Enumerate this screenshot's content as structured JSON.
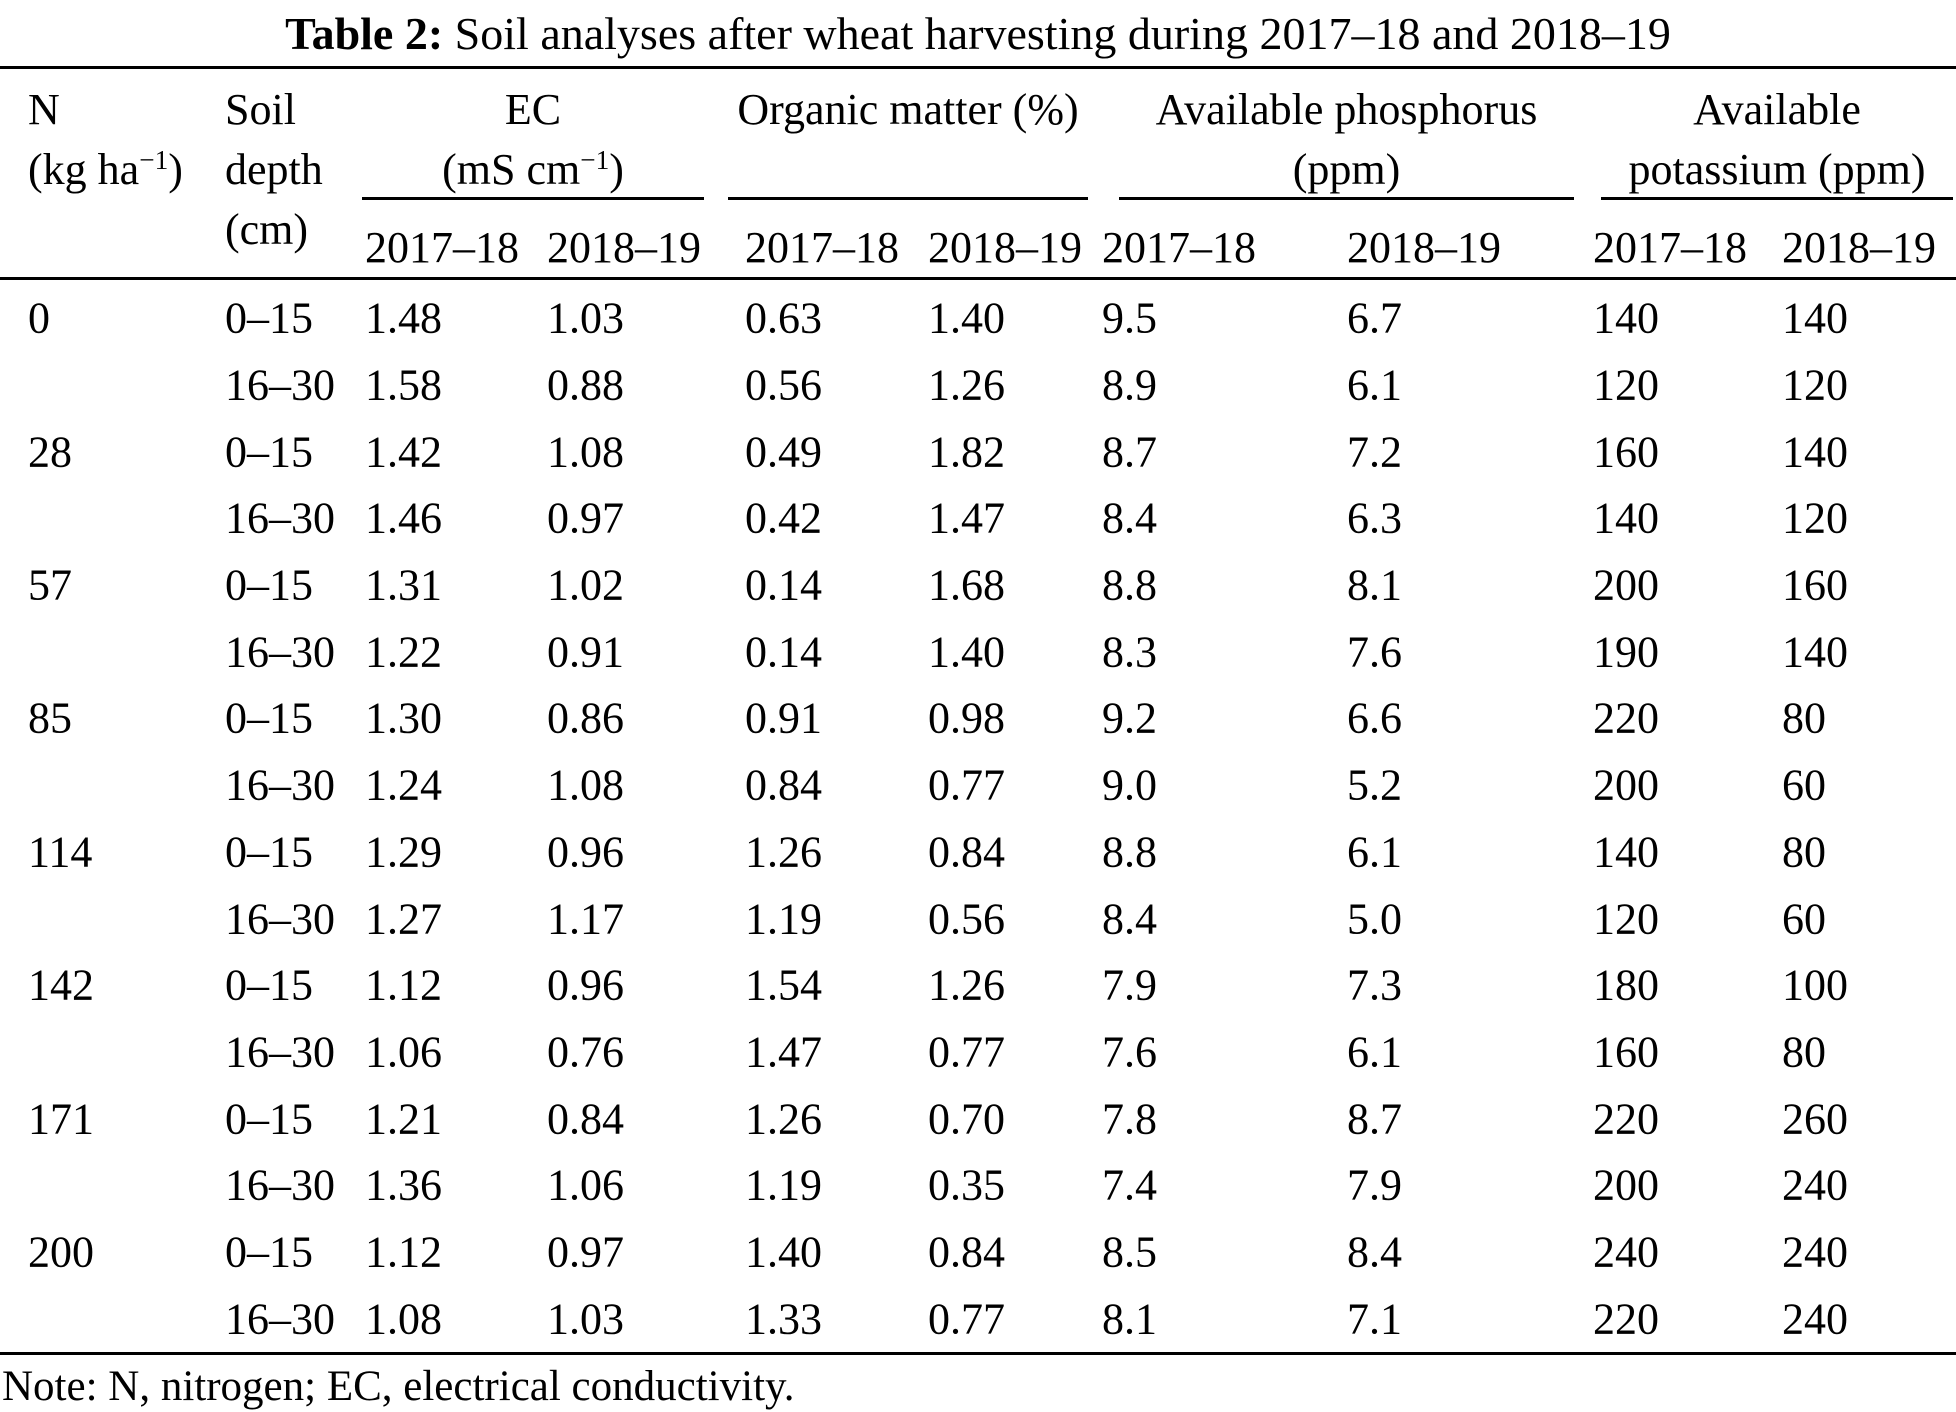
{
  "title": {
    "label": "Table 2:",
    "text": "Soil analyses after wheat harvesting during 2017–18 and 2018–19"
  },
  "header": {
    "n": {
      "line1": "N",
      "unit_pre": "(kg ha",
      "unit_sup": "−1",
      "unit_post": ")"
    },
    "soil_depth": {
      "line1": "Soil",
      "line2": "depth",
      "line3": "(cm)"
    },
    "ec": {
      "line1": "EC",
      "unit_pre": "(mS cm",
      "unit_sup": "−1",
      "unit_post": ")"
    },
    "organic_matter": {
      "line1": "Organic matter (%)"
    },
    "phosphorus": {
      "line1": "Available phosphorus",
      "line2": "(ppm)"
    },
    "potassium": {
      "line1": "Available",
      "line2": "potassium (ppm)"
    },
    "year_first": "2017–18",
    "year_second": "2018–19"
  },
  "rows": [
    [
      "0",
      "0–15",
      "1.48",
      "1.03",
      "0.63",
      "1.40",
      "9.5",
      "6.7",
      "140",
      "140"
    ],
    [
      "",
      "16–30",
      "1.58",
      "0.88",
      "0.56",
      "1.26",
      "8.9",
      "6.1",
      "120",
      "120"
    ],
    [
      "28",
      "0–15",
      "1.42",
      "1.08",
      "0.49",
      "1.82",
      "8.7",
      "7.2",
      "160",
      "140"
    ],
    [
      "",
      "16–30",
      "1.46",
      "0.97",
      "0.42",
      "1.47",
      "8.4",
      "6.3",
      "140",
      "120"
    ],
    [
      "57",
      "0–15",
      "1.31",
      "1.02",
      "0.14",
      "1.68",
      "8.8",
      "8.1",
      "200",
      "160"
    ],
    [
      "",
      "16–30",
      "1.22",
      "0.91",
      "0.14",
      "1.40",
      "8.3",
      "7.6",
      "190",
      "140"
    ],
    [
      "85",
      "0–15",
      "1.30",
      "0.86",
      "0.91",
      "0.98",
      "9.2",
      "6.6",
      "220",
      "80"
    ],
    [
      "",
      "16–30",
      "1.24",
      "1.08",
      "0.84",
      "0.77",
      "9.0",
      "5.2",
      "200",
      "60"
    ],
    [
      "114",
      "0–15",
      "1.29",
      "0.96",
      "1.26",
      "0.84",
      "8.8",
      "6.1",
      "140",
      "80"
    ],
    [
      "",
      "16–30",
      "1.27",
      "1.17",
      "1.19",
      "0.56",
      "8.4",
      "5.0",
      "120",
      "60"
    ],
    [
      "142",
      "0–15",
      "1.12",
      "0.96",
      "1.54",
      "1.26",
      "7.9",
      "7.3",
      "180",
      "100"
    ],
    [
      "",
      "16–30",
      "1.06",
      "0.76",
      "1.47",
      "0.77",
      "7.6",
      "6.1",
      "160",
      "80"
    ],
    [
      "171",
      "0–15",
      "1.21",
      "0.84",
      "1.26",
      "0.70",
      "7.8",
      "8.7",
      "220",
      "260"
    ],
    [
      "",
      "16–30",
      "1.36",
      "1.06",
      "1.19",
      "0.35",
      "7.4",
      "7.9",
      "200",
      "240"
    ],
    [
      "200",
      "0–15",
      "1.12",
      "0.97",
      "1.40",
      "0.84",
      "8.5",
      "8.4",
      "240",
      "240"
    ],
    [
      "",
      "16–30",
      "1.08",
      "1.03",
      "1.33",
      "0.77",
      "8.1",
      "7.1",
      "220",
      "240"
    ]
  ],
  "note": "Note: N, nitrogen; EC, electrical conductivity.",
  "colors": {
    "text": "#000000",
    "background": "#ffffff",
    "rule": "#000000"
  }
}
